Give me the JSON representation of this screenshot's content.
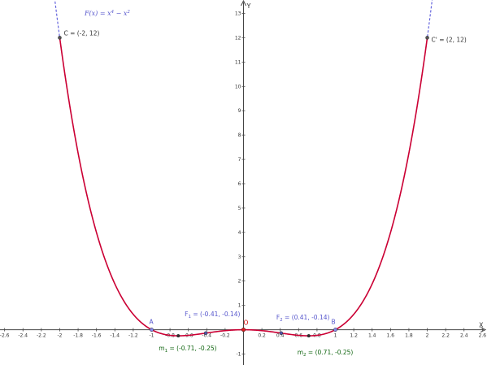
{
  "chart_data": {
    "type": "line",
    "title": "",
    "formula": {
      "label": "F(x)",
      "eq": "=",
      "rhs_a": "x",
      "rhs_a_exp": "4",
      "rhs_op": "−",
      "rhs_b": "x",
      "rhs_b_exp": "2"
    },
    "xlabel": "X",
    "ylabel": "Y",
    "xlim": [
      -2.65,
      2.65
    ],
    "ylim": [
      -1.45,
      13.55
    ],
    "x_ticks": [
      -2.6,
      -2.4,
      -2.2,
      -2,
      -1.8,
      -1.6,
      -1.4,
      -1.2,
      -1,
      -0.8,
      -0.6,
      -0.4,
      -0.2,
      0.2,
      0.4,
      0.6,
      0.8,
      1,
      1.2,
      1.4,
      1.6,
      1.8,
      2,
      2.2,
      2.4,
      2.6
    ],
    "x_tick_labels": [
      "-2.6",
      "-2.4",
      "-2.2",
      "-2",
      "-1.8",
      "-1.6",
      "-1.4",
      "-1.2",
      "-1",
      "-0.8",
      "-0.6",
      "-0.4",
      "-0.2",
      "0.2",
      "0.4",
      "0.6",
      "0.8",
      "1",
      "1.2",
      "1.4",
      "1.6",
      "1.8",
      "2",
      "2.2",
      "2.4",
      "2.6"
    ],
    "y_ticks": [
      -1,
      1,
      2,
      3,
      4,
      5,
      6,
      7,
      8,
      9,
      10,
      11,
      12,
      13
    ],
    "y_tick_labels": [
      "-1",
      "1",
      "2",
      "3",
      "4",
      "5",
      "6",
      "7",
      "8",
      "9",
      "10",
      "11",
      "12",
      "13"
    ],
    "function": {
      "coeff_x4": 1,
      "coeff_x2": -1,
      "full_range": [
        -2.65,
        2.65
      ],
      "highlight_range": [
        -2,
        2
      ]
    },
    "points": [
      {
        "id": "C",
        "x": -2,
        "y": 12,
        "name": "C",
        "coords": " = (-2, 12)"
      },
      {
        "id": "Cp",
        "x": 2,
        "y": 12,
        "name": "C'",
        "coords": " = (2, 12)"
      },
      {
        "id": "A",
        "x": -1,
        "y": 0,
        "name": "A",
        "coords": ""
      },
      {
        "id": "B",
        "x": 1,
        "y": 0,
        "name": "B",
        "coords": ""
      },
      {
        "id": "O",
        "x": 0,
        "y": 0,
        "name": "O",
        "coords": ""
      },
      {
        "id": "F1",
        "x": -0.41,
        "y": -0.14,
        "name": "F",
        "sub": "1",
        "coords": " = (-0.41, -0.14)"
      },
      {
        "id": "F2",
        "x": 0.41,
        "y": -0.14,
        "name": "F",
        "sub": "2",
        "coords": " = (0.41, -0.14)"
      },
      {
        "id": "m1",
        "x": -0.71,
        "y": -0.25,
        "name": "m",
        "sub": "1",
        "coords": " = (-0.71, -0.25)"
      },
      {
        "id": "m2",
        "x": 0.71,
        "y": -0.25,
        "name": "m",
        "sub": "2",
        "coords": " = (0.71, -0.25)"
      }
    ],
    "grid": false,
    "colors": {
      "curve": "#cc0033",
      "curve_dashed": "#6666dd",
      "axis": "#444444",
      "point_dark": "#555555",
      "label_blue": "#5555cc",
      "label_green": "#116611",
      "label_red": "#cc0000",
      "label_gray": "#333333"
    }
  }
}
